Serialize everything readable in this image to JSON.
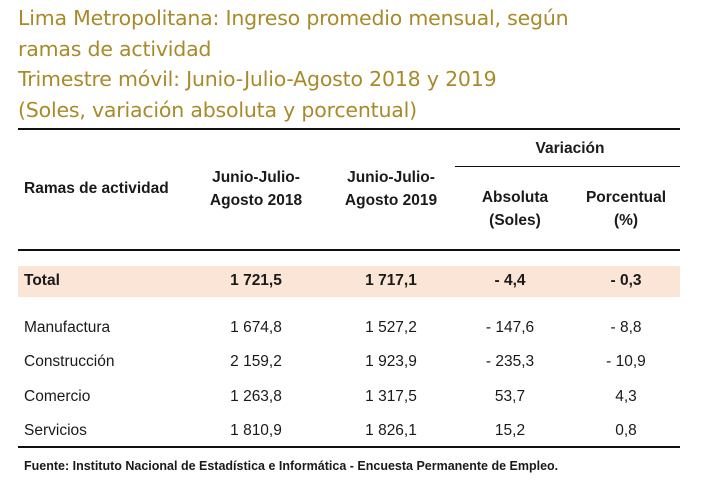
{
  "title_lines": [
    "Lima Metropolitana: Ingreso promedio mensual, según",
    "ramas de actividad",
    "Trimestre móvil: Junio-Julio-Agosto 2018  y 2019",
    "(Soles, variación absoluta y porcentual)"
  ],
  "header": {
    "ramas": "Ramas de actividad",
    "col2018": [
      "Junio-Julio-",
      "Agosto 2018"
    ],
    "col2019": [
      "Junio-Julio-",
      "Agosto 2019"
    ],
    "variacion": "Variación",
    "absoluta": [
      "Absoluta",
      "(Soles)"
    ],
    "porcentual": [
      "Porcentual",
      "(%)"
    ]
  },
  "total": {
    "name": "Total",
    "v2018": "1 721,5",
    "v2019": "1 717,1",
    "abs": "- 4,4",
    "pct": "- 0,3"
  },
  "rows": [
    {
      "name": "Manufactura",
      "v2018": "1 674,8",
      "v2019": "1 527,2",
      "abs": "- 147,6",
      "pct": "- 8,8"
    },
    {
      "name": "Construcción",
      "v2018": "2 159,2",
      "v2019": "1 923,9",
      "abs": "- 235,3",
      "pct": "- 10,9"
    },
    {
      "name": "Comercio",
      "v2018": "1 263,8",
      "v2019": "1 317,5",
      "abs": "53,7",
      "pct": "4,3"
    },
    {
      "name": "Servicios",
      "v2018": "1 810,9",
      "v2019": "1 826,1",
      "abs": "15,2",
      "pct": "0,8"
    }
  ],
  "source": "Fuente: Instituto Nacional de Estadística e Informática - Encuesta Permanente de Empleo.",
  "colors": {
    "title": "#a98a2a",
    "total_band": "#fbe5d6"
  }
}
